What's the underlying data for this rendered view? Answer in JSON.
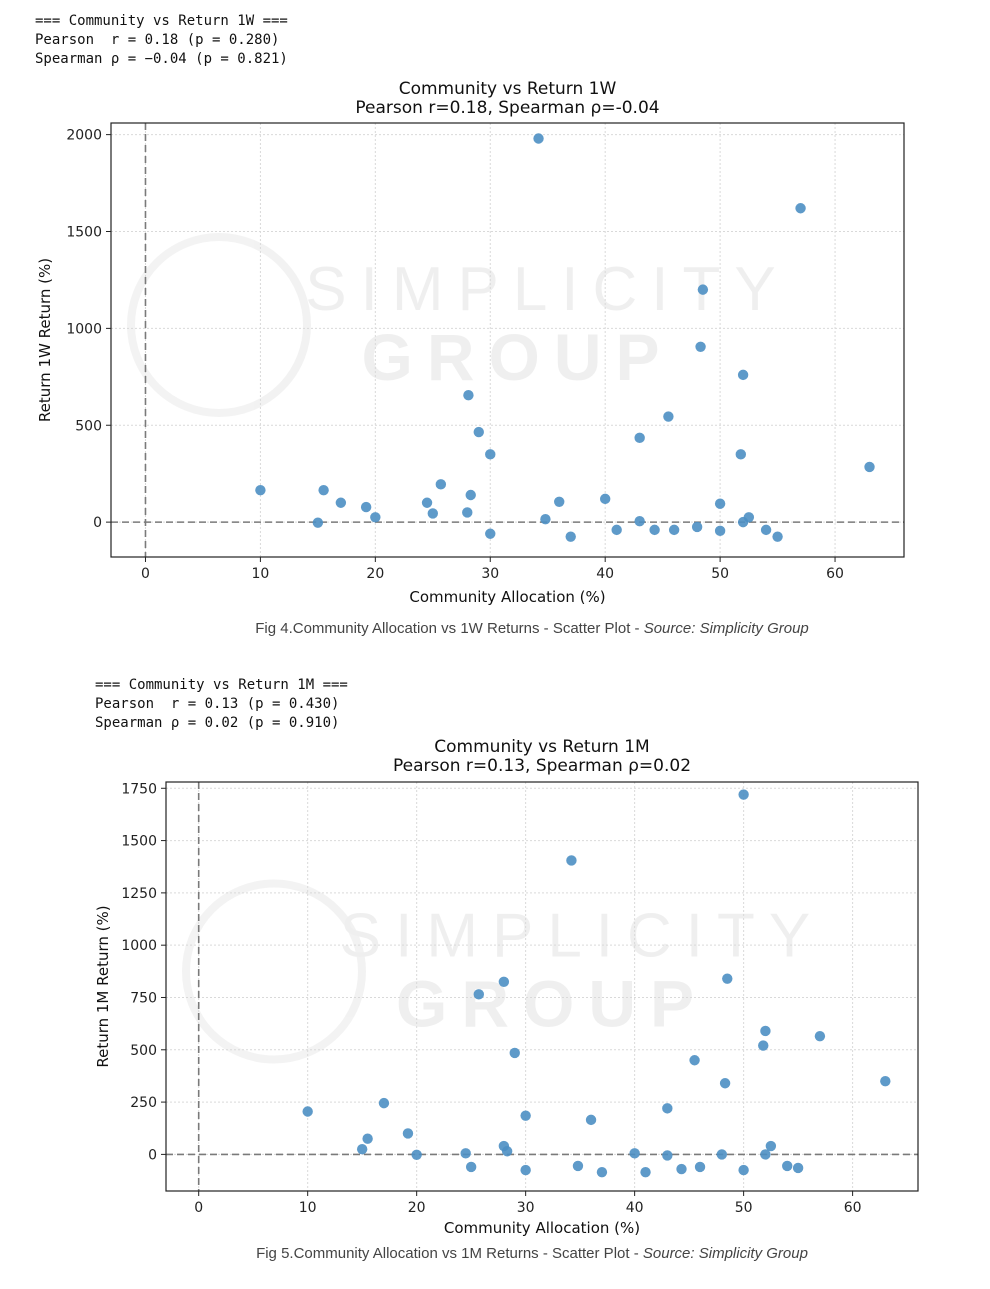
{
  "stats": [
    {
      "header": "=== Community vs Return 1W ===",
      "pearson": "Pearson  r = 0.18 (p = 0.280)",
      "spearman": "Spearman ρ = −0.04 (p = 0.821)"
    },
    {
      "header": "=== Community vs Return 1M ===",
      "pearson": "Pearson  r = 0.13 (p = 0.430)",
      "spearman": "Spearman ρ = 0.02 (p = 0.910)"
    }
  ],
  "captions": [
    {
      "text": "Fig 4.Community Allocation vs 1W Returns - Scatter Plot - ",
      "source": "Source: Simplicity Group"
    },
    {
      "text": "Fig 5.Community Allocation vs 1M Returns - Scatter Plot - ",
      "source": "Source: Simplicity Group"
    }
  ],
  "watermark": {
    "line1": "SIMPLICITY",
    "line2": "GROUP"
  },
  "colors": {
    "points": "#4c8fc3",
    "refline": "#7a7a7a",
    "grid": "#d9d9d9"
  },
  "chart_data": [
    {
      "type": "scatter",
      "title": "Community vs Return 1W",
      "subtitle": "Pearson r=0.18, Spearman ρ=-0.04",
      "xlabel": "Community Allocation (%)",
      "ylabel": "Return 1W Return (%)",
      "xlim": [
        -3,
        66
      ],
      "ylim": [
        -180,
        2060
      ],
      "xticks": [
        0,
        10,
        20,
        30,
        40,
        50,
        60
      ],
      "yticks": [
        0,
        500,
        1000,
        1500,
        2000
      ],
      "grid": true,
      "reference_lines": {
        "x": 0,
        "y": 0
      },
      "points": [
        [
          10,
          165
        ],
        [
          15,
          -3
        ],
        [
          15.5,
          165
        ],
        [
          17,
          100
        ],
        [
          19.2,
          78
        ],
        [
          20,
          25
        ],
        [
          24.5,
          100
        ],
        [
          25,
          45
        ],
        [
          25.7,
          195
        ],
        [
          28,
          50
        ],
        [
          28.1,
          655
        ],
        [
          28.3,
          140
        ],
        [
          29,
          465
        ],
        [
          30,
          350
        ],
        [
          30,
          -60
        ],
        [
          34.2,
          1980
        ],
        [
          34.8,
          15
        ],
        [
          36,
          105
        ],
        [
          37,
          -75
        ],
        [
          40,
          120
        ],
        [
          41,
          -40
        ],
        [
          43,
          5
        ],
        [
          43,
          435
        ],
        [
          44.3,
          -40
        ],
        [
          45.5,
          545
        ],
        [
          46,
          -40
        ],
        [
          48,
          -25
        ],
        [
          48.3,
          905
        ],
        [
          48.5,
          1200
        ],
        [
          50,
          95
        ],
        [
          50,
          -45
        ],
        [
          51.8,
          350
        ],
        [
          52,
          760
        ],
        [
          52,
          0
        ],
        [
          52.5,
          25
        ],
        [
          54,
          -40
        ],
        [
          55,
          -75
        ],
        [
          57,
          1620
        ],
        [
          63,
          285
        ]
      ]
    },
    {
      "type": "scatter",
      "title": "Community vs Return 1M",
      "subtitle": "Pearson r=0.13, Spearman ρ=0.02",
      "xlabel": "Community Allocation (%)",
      "ylabel": "Return 1M Return (%)",
      "xlim": [
        -3,
        66
      ],
      "ylim": [
        -175,
        1780
      ],
      "xticks": [
        0,
        10,
        20,
        30,
        40,
        50,
        60
      ],
      "yticks": [
        0,
        250,
        500,
        750,
        1000,
        1250,
        1500,
        1750
      ],
      "grid": true,
      "reference_lines": {
        "x": 0,
        "y": 0
      },
      "points": [
        [
          10,
          205
        ],
        [
          15,
          25
        ],
        [
          15.5,
          75
        ],
        [
          17,
          245
        ],
        [
          19.2,
          100
        ],
        [
          20,
          -2
        ],
        [
          24.5,
          5
        ],
        [
          25,
          -60
        ],
        [
          25.7,
          765
        ],
        [
          28,
          40
        ],
        [
          28,
          825
        ],
        [
          28.3,
          15
        ],
        [
          29,
          485
        ],
        [
          30,
          185
        ],
        [
          30,
          -75
        ],
        [
          34.2,
          1405
        ],
        [
          34.8,
          -55
        ],
        [
          36,
          165
        ],
        [
          37,
          -85
        ],
        [
          40,
          5
        ],
        [
          41,
          -85
        ],
        [
          43,
          -5
        ],
        [
          43,
          220
        ],
        [
          44.3,
          -70
        ],
        [
          45.5,
          450
        ],
        [
          46,
          -60
        ],
        [
          48,
          0
        ],
        [
          48.3,
          340
        ],
        [
          48.5,
          840
        ],
        [
          50,
          -75
        ],
        [
          50,
          1720
        ],
        [
          51.8,
          520
        ],
        [
          52,
          590
        ],
        [
          52,
          0
        ],
        [
          52.5,
          40
        ],
        [
          54,
          -55
        ],
        [
          55,
          -65
        ],
        [
          57,
          565
        ],
        [
          63,
          350
        ]
      ]
    }
  ]
}
